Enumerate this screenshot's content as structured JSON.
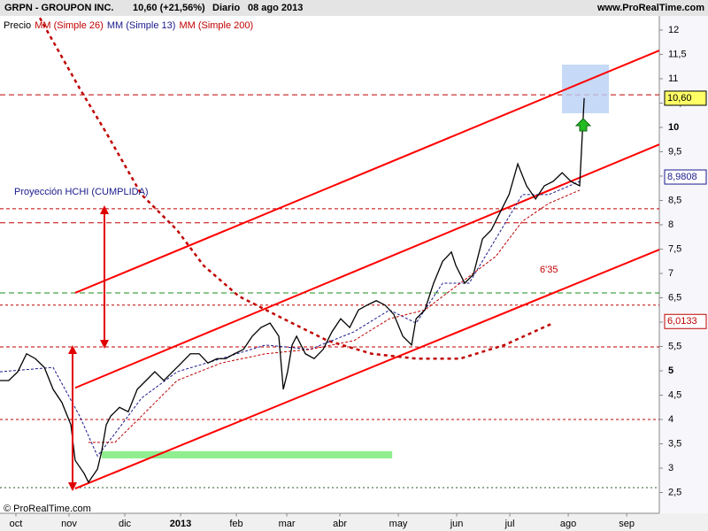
{
  "header": {
    "symbol": "GRPN - GROUPON INC.",
    "quote": "10,60 (+21,56%)",
    "period": "Diario",
    "date": "08 ago 2013",
    "site": "www.ProRealTime.com"
  },
  "footer": "© ProRealTime.com",
  "chart_data": {
    "type": "line",
    "annotations": [
      "Proyección HCHI (CUMPLIDA)",
      "6'35"
    ],
    "xlim": [
      0,
      248.3
    ],
    "xticks": [
      {
        "value": 6,
        "label": "oct"
      },
      {
        "value": 26,
        "label": "nov"
      },
      {
        "value": 47,
        "label": "dic"
      },
      {
        "value": 68,
        "label": "2013"
      },
      {
        "value": 89,
        "label": "feb"
      },
      {
        "value": 108,
        "label": "mar"
      },
      {
        "value": 128,
        "label": "abr"
      },
      {
        "value": 150,
        "label": "may"
      },
      {
        "value": 172,
        "label": "jun"
      },
      {
        "value": 192,
        "label": "jul"
      },
      {
        "value": 214,
        "label": "ago"
      },
      {
        "value": 236,
        "label": "sep"
      }
    ],
    "ylim": [
      2.08,
      12.29
    ],
    "yticks": [
      {
        "value": 2.5,
        "label": "2,5"
      },
      3,
      {
        "value": 3.5,
        "label": "3,5"
      },
      4,
      {
        "value": 4.5,
        "label": "4,5"
      },
      5,
      {
        "value": 5.5,
        "label": "5,5"
      },
      6,
      {
        "value": 6.5,
        "label": "6,5"
      },
      7,
      {
        "value": 7.5,
        "label": "7,5"
      },
      8,
      {
        "value": 8.5,
        "label": "8,5"
      },
      9,
      {
        "value": 9.5,
        "label": "9,5"
      },
      10,
      {
        "value": 10.5,
        "label": "10,5"
      },
      11,
      {
        "value": 11.5,
        "label": "11,5"
      },
      12
    ],
    "series": [
      {
        "name": "Precio",
        "color": "#000000",
        "width": 1.3,
        "dash": "",
        "x": [
          0,
          3.3,
          6.7,
          10,
          13.3,
          16.7,
          20,
          23.3,
          26.7,
          28.3,
          31.7,
          33.3,
          36.7,
          38.3,
          40,
          41.7,
          45,
          48.3,
          51.7,
          55,
          58.3,
          61.7,
          65,
          68.3,
          71.7,
          75,
          78.3,
          81.7,
          85,
          88.3,
          91.7,
          95,
          98.3,
          101.7,
          105,
          106.7,
          108.3,
          110,
          111.7,
          115,
          118.3,
          121.7,
          125,
          128.3,
          131.7,
          135,
          138.3,
          141.7,
          145,
          148.3,
          151.7,
          155,
          156.7,
          160,
          163.3,
          166.7,
          170,
          171.7,
          175,
          178.3,
          181.7,
          185,
          188.3,
          191.7,
          195,
          198.3,
          201.7,
          205,
          208.3,
          211.7,
          215,
          218.3,
          220
        ],
        "values": [
          4.8,
          4.8,
          4.98,
          5.35,
          5.25,
          5.07,
          4.62,
          4.35,
          3.89,
          3.16,
          2.89,
          2.71,
          2.98,
          3.35,
          3.89,
          4.07,
          4.25,
          4.16,
          4.62,
          4.8,
          4.98,
          4.8,
          4.98,
          5.16,
          5.35,
          5.35,
          5.16,
          5.25,
          5.25,
          5.35,
          5.44,
          5.71,
          5.89,
          5.98,
          5.71,
          4.62,
          4.98,
          5.53,
          5.71,
          5.35,
          5.25,
          5.44,
          5.8,
          6.07,
          5.89,
          6.25,
          6.35,
          6.44,
          6.35,
          6.16,
          5.71,
          5.53,
          6.07,
          6.25,
          6.8,
          7.25,
          7.44,
          7.16,
          6.8,
          6.98,
          7.71,
          7.89,
          8.25,
          8.62,
          9.25,
          8.8,
          8.53,
          8.8,
          8.89,
          9.07,
          8.89,
          8.8,
          10.6
        ]
      },
      {
        "name": "MM (Simple 26)",
        "color": "#c00000",
        "width": 1,
        "dash": "3,2",
        "x": [
          33.3,
          43.3,
          53.3,
          66.7,
          83.3,
          100,
          116.7,
          133.3,
          146.7,
          160,
          173.3,
          186.7,
          196.7,
          206.7,
          218.3
        ],
        "values": [
          3.53,
          3.53,
          4.07,
          4.8,
          5.16,
          5.35,
          5.44,
          5.62,
          6.07,
          6.25,
          6.8,
          7.35,
          8.07,
          8.44,
          8.71
        ]
      },
      {
        "name": "MM (Simple 13)",
        "color": "#1a1a8c",
        "width": 1,
        "dash": "3,2",
        "x": [
          0,
          20,
          30,
          36.7,
          43.3,
          53.3,
          66.7,
          83.3,
          100,
          116.7,
          133.3,
          146.7,
          156.7,
          166.7,
          176.7,
          186.7,
          196.7,
          206.7,
          218.3
        ],
        "values": [
          4.98,
          5.07,
          4.07,
          3.25,
          3.71,
          4.44,
          4.98,
          5.25,
          5.53,
          5.44,
          5.8,
          6.25,
          5.98,
          6.8,
          6.8,
          7.71,
          8.62,
          8.62,
          8.89
        ]
      },
      {
        "name": "MM (Simple 200)",
        "color": "#c00000",
        "width": 2.5,
        "dash": "4,4",
        "x": [
          15,
          30,
          40,
          53.3,
          66.7,
          76.7,
          90,
          106.7,
          123.3,
          140,
          156.7,
          173.3,
          190,
          208.3
        ],
        "values": [
          12.25,
          10.8,
          9.89,
          8.62,
          7.89,
          7.16,
          6.53,
          6.07,
          5.62,
          5.35,
          5.25,
          5.25,
          5.53,
          5.98
        ]
      }
    ],
    "trend_lines": [
      {
        "color": "#ff0000",
        "x": [
          28.3,
          248.3
        ],
        "values": [
          6.6,
          11.58
        ]
      },
      {
        "color": "#ff0000",
        "x": [
          28.3,
          248.3
        ],
        "values": [
          4.65,
          9.65
        ]
      },
      {
        "color": "#ff0000",
        "x": [
          28.3,
          248.3
        ],
        "values": [
          2.58,
          7.49
        ]
      }
    ],
    "hlines": [
      {
        "value": 10.67,
        "color": "#c00000",
        "dash": "6,4"
      },
      {
        "value": 8.33,
        "color": "#c00000",
        "dash": "4,3"
      },
      {
        "value": 8.04,
        "color": "#c00000",
        "dash": "6,4"
      },
      {
        "value": 6.6,
        "color": "#1a8c1a",
        "dash": "6,4"
      },
      {
        "value": 6.35,
        "color": "#c00000",
        "dash": "3,3"
      },
      {
        "value": 5.49,
        "color": "#c00000",
        "dash": "4,3"
      },
      {
        "value": 4.0,
        "color": "#c00000",
        "dash": "3,3"
      },
      {
        "value": 2.6,
        "color": "#2a5a2a",
        "dash": "2,3"
      }
    ],
    "zone": {
      "color": "#90ee90",
      "x": [
        38.3,
        147.7
      ],
      "values": [
        3.35,
        3.2
      ]
    },
    "price_labels": [
      {
        "value": 10.6,
        "label": "10,60",
        "fill": "#ffff66",
        "color": "#000000"
      },
      {
        "value": 8.9808,
        "label": "8,9808",
        "fill": "#ffffff",
        "color": "#1a1a8c"
      },
      {
        "value": 6.0133,
        "label": "6,0133",
        "fill": "#ffffff",
        "color": "#c00000"
      }
    ]
  }
}
